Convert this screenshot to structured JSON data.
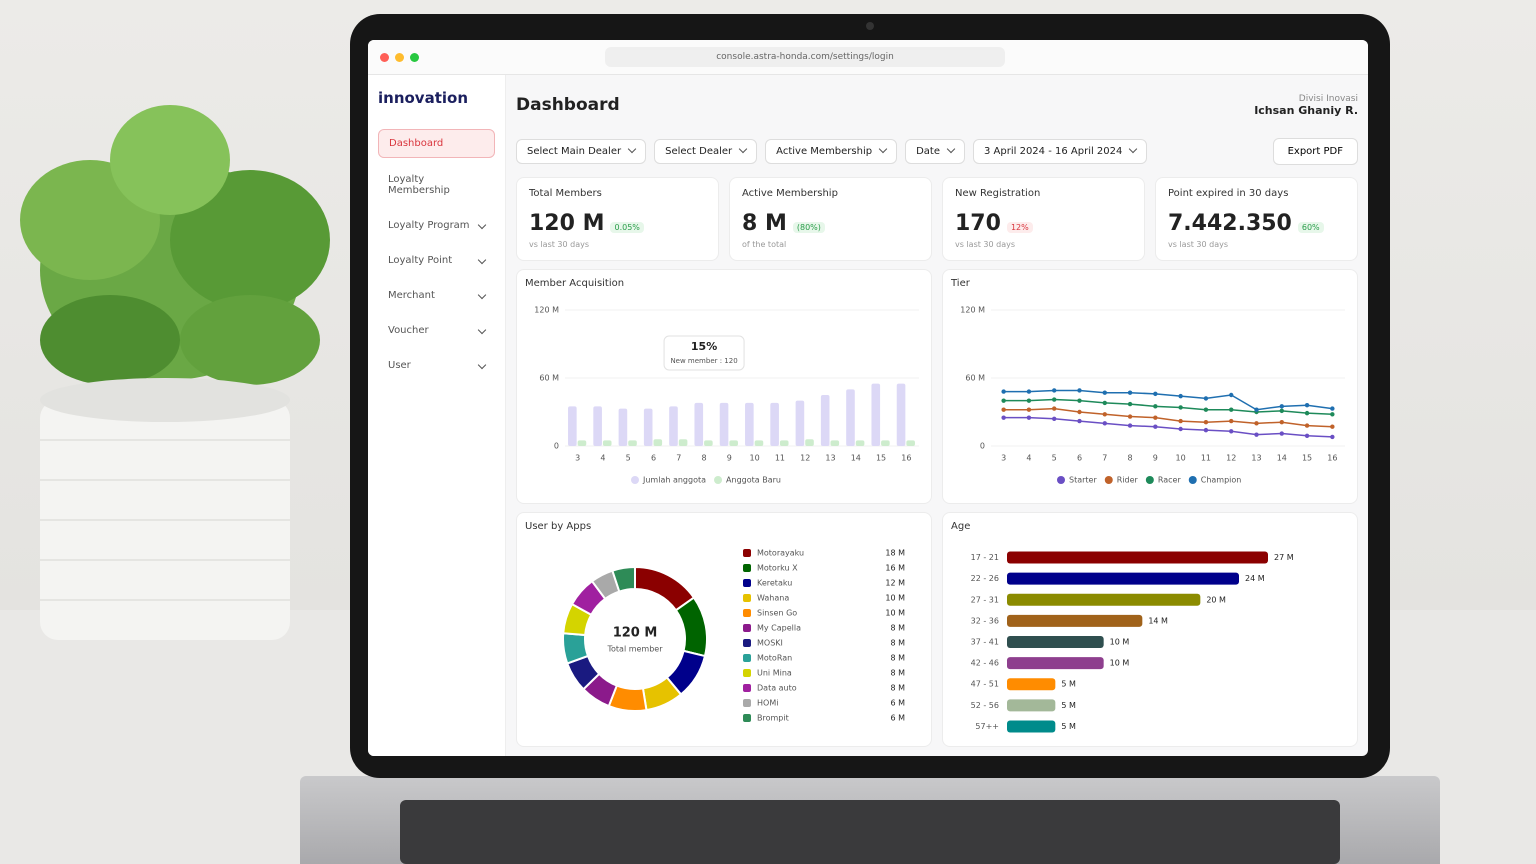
{
  "browser": {
    "url": "console.astra-honda.com/settings/login"
  },
  "sidebar": {
    "logo": "innovation",
    "menu": [
      "Dashboard",
      "Loyalty Membership",
      "Loyalty Program",
      "Loyalty Point",
      "Merchant",
      "Voucher",
      "User"
    ]
  },
  "header": {
    "title": "Dashboard",
    "user_role": "Divisi Inovasi",
    "user_name": "Ichsan Ghaniy R.",
    "export": "Export PDF"
  },
  "filters": [
    "Select Main Dealer",
    "Select Dealer",
    "Active Membership",
    "Date",
    "3 April 2024 - 16 April 2024"
  ],
  "stats": [
    {
      "label": "Total Members",
      "value": "120 M",
      "change": "0.05%",
      "note": "vs last 30 days"
    },
    {
      "label": "Active Membership",
      "value": "8 M",
      "change": "(80%)",
      "note": "of the total"
    },
    {
      "label": "New Registration",
      "value": "170",
      "change": "12%",
      "note": "vs last 30 days"
    },
    {
      "label": "Point expired in 30 days",
      "value": "7.442.350",
      "change": "60%",
      "note": "vs last 30 days"
    }
  ],
  "member_acquisition": {
    "title": "Member Acquisition",
    "categories": [
      "3",
      "4",
      "5",
      "6",
      "7",
      "8",
      "9",
      "10",
      "11",
      "12",
      "13",
      "14",
      "15",
      "16"
    ],
    "ylim": [
      0,
      120
    ],
    "yticks": [
      0,
      {
        "value": 60,
        "label": "60 M"
      },
      {
        "value": 120,
        "label": "120 M"
      }
    ],
    "series": [
      {
        "name": "Jumlah anggota",
        "color": "#dcd8f6",
        "values": [
          35,
          35,
          33,
          33,
          35,
          38,
          38,
          38,
          38,
          40,
          45,
          50,
          55,
          55
        ]
      },
      {
        "name": "Anggota Baru",
        "color": "#cdeccd",
        "values": [
          5,
          5,
          5,
          6,
          6,
          5,
          5,
          5,
          5,
          6,
          5,
          5,
          5,
          5
        ]
      }
    ],
    "tooltip": {
      "value": "15%",
      "note": "New member : 120"
    }
  },
  "tier": {
    "title": "Tier",
    "categories": [
      "3",
      "4",
      "5",
      "6",
      "7",
      "8",
      "9",
      "10",
      "11",
      "12",
      "13",
      "14",
      "15",
      "16"
    ],
    "ylim": [
      0,
      120
    ],
    "yticks": [
      0,
      {
        "value": 60,
        "label": "60 M"
      },
      {
        "value": 120,
        "label": "120 M"
      }
    ],
    "series": [
      {
        "name": "Starter",
        "color": "#6a4fc4",
        "values": [
          25,
          25,
          24,
          22,
          20,
          18,
          17,
          15,
          14,
          13,
          10,
          11,
          9,
          8
        ]
      },
      {
        "name": "Rider",
        "color": "#c0622a",
        "values": [
          32,
          32,
          33,
          30,
          28,
          26,
          25,
          22,
          21,
          22,
          20,
          21,
          18,
          17
        ]
      },
      {
        "name": "Racer",
        "color": "#1e8a5a",
        "values": [
          40,
          40,
          41,
          40,
          38,
          37,
          35,
          34,
          32,
          32,
          30,
          31,
          29,
          28
        ]
      },
      {
        "name": "Champion",
        "color": "#1f6fb0",
        "values": [
          48,
          48,
          49,
          49,
          47,
          47,
          46,
          44,
          42,
          45,
          32,
          35,
          36,
          33
        ]
      }
    ]
  },
  "user_by_apps": {
    "title": "User by Apps",
    "total": "120 M",
    "total_label": "Total member",
    "categories": [
      "Motorayaku",
      "Motorku X",
      "Keretaku",
      "Wahana",
      "Sinsen Go",
      "My Capella",
      "MOSKI",
      "MotoRan",
      "Uni Mina",
      "Data auto",
      "HOMi",
      "Brompit"
    ],
    "values": [
      18,
      16,
      12,
      10,
      10,
      8,
      8,
      8,
      8,
      8,
      6,
      6
    ],
    "value_labels": [
      "18 M",
      "16 M",
      "12 M",
      "10 M",
      "10 M",
      "8 M",
      "8 M",
      "8 M",
      "8 M",
      "8 M",
      "6 M",
      "6 M"
    ],
    "colors": [
      "#8b0000",
      "#006400",
      "#00008b",
      "#e6c200",
      "#ff8c00",
      "#8b1a8b",
      "#1a1a80",
      "#2aa198",
      "#d4d400",
      "#a020a0",
      "#a9a9a9",
      "#2e8b57"
    ]
  },
  "age": {
    "title": "Age",
    "categories": [
      "17 - 21",
      "22 - 26",
      "27 - 31",
      "32 - 36",
      "37 - 41",
      "42 - 46",
      "47 - 51",
      "52 - 56",
      "57++"
    ],
    "values": [
      27,
      24,
      20,
      14,
      10,
      10,
      5,
      5,
      5
    ],
    "value_labels": [
      "27 M",
      "24 M",
      "20 M",
      "14 M",
      "10 M",
      "10 M",
      "5 M",
      "5 M",
      "5 M"
    ],
    "colors": [
      "#8b0000",
      "#00008b",
      "#8b8b00",
      "#a0621a",
      "#2f4f4f",
      "#8e3f8e",
      "#ff8c00",
      "#a3b899",
      "#008b8b"
    ],
    "xlim": [
      0,
      30
    ]
  }
}
